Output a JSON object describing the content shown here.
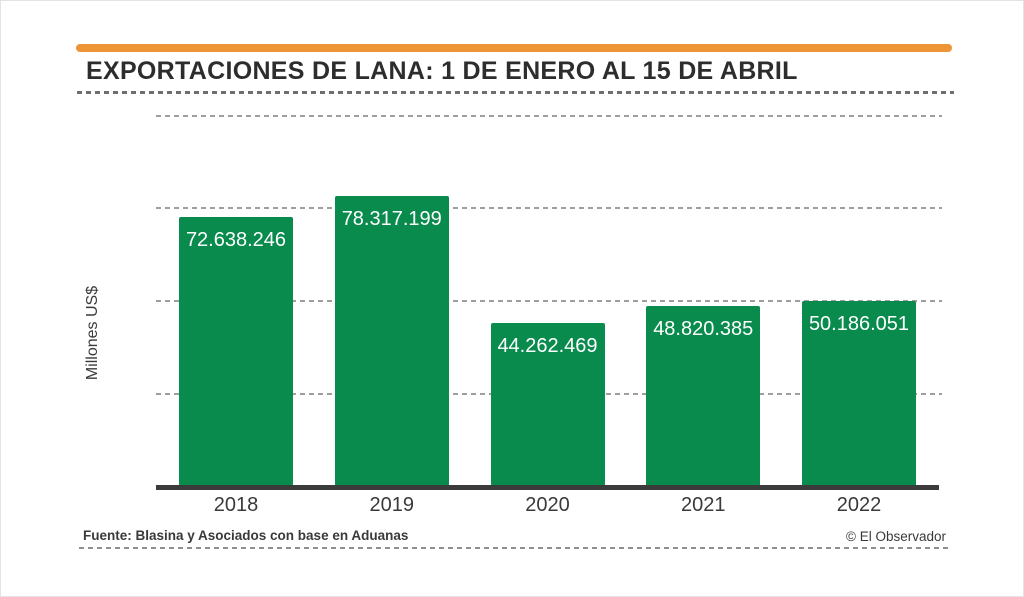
{
  "header": {
    "accent_color": "#ED9338"
  },
  "chart_data": {
    "type": "bar",
    "title": "EXPORTACIONES DE LANA: 1 DE ENERO AL 15 DE ABRIL",
    "categories": [
      "2018",
      "2019",
      "2020",
      "2021",
      "2022"
    ],
    "values": [
      72638246,
      78317199,
      44262469,
      48820385,
      50186051
    ],
    "value_labels": [
      "72.638.246",
      "78.317.199",
      "44.262.469",
      "48.820.385",
      "50.186.051"
    ],
    "xlabel": "",
    "ylabel": "Millones US$",
    "ylim": [
      0,
      100000000
    ],
    "gridline_values": [
      25000000,
      50000000,
      75000000,
      100000000
    ],
    "grid": "horizontal-dashed",
    "legend": "none",
    "bar_color": "#088B4D",
    "value_label_color": "#FFFFFF",
    "axis_color": "#3b3b3b"
  },
  "footer": {
    "source": "Fuente: Blasina y Asociados con base en Aduanas",
    "credit": "© El Observador"
  }
}
